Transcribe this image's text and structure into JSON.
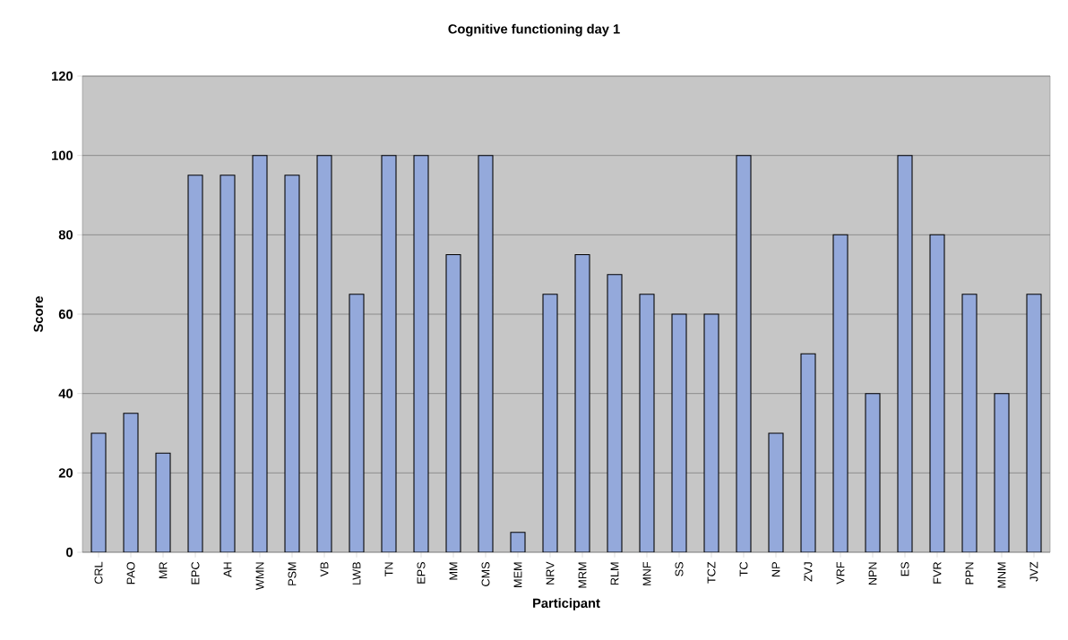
{
  "chart_data": {
    "type": "bar",
    "title": "Cognitive functioning day 1",
    "xlabel": "Participant",
    "ylabel": "Score",
    "categories": [
      "CRL",
      "PAO",
      "MR",
      "EPC",
      "AH",
      "WMN",
      "PSM",
      "VB",
      "LWB",
      "TN",
      "EPS",
      "MM",
      "CMS",
      "MEM",
      "NRV",
      "MRM",
      "RLM",
      "MNF",
      "SS",
      "TCZ",
      "TC",
      "NP",
      "ZVJ",
      "VRF",
      "NPN",
      "ES",
      "FVR",
      "PPN",
      "MNM",
      "JVZ"
    ],
    "values": [
      30,
      35,
      25,
      95,
      95,
      100,
      95,
      100,
      65,
      100,
      100,
      75,
      100,
      5,
      65,
      75,
      70,
      65,
      60,
      60,
      100,
      30,
      50,
      80,
      40,
      100,
      80,
      65,
      40,
      65
    ],
    "color": "#94a9db",
    "ylim": [
      0,
      120
    ],
    "yticks": [
      0,
      20,
      40,
      60,
      80,
      100,
      120
    ],
    "grid": "y"
  }
}
